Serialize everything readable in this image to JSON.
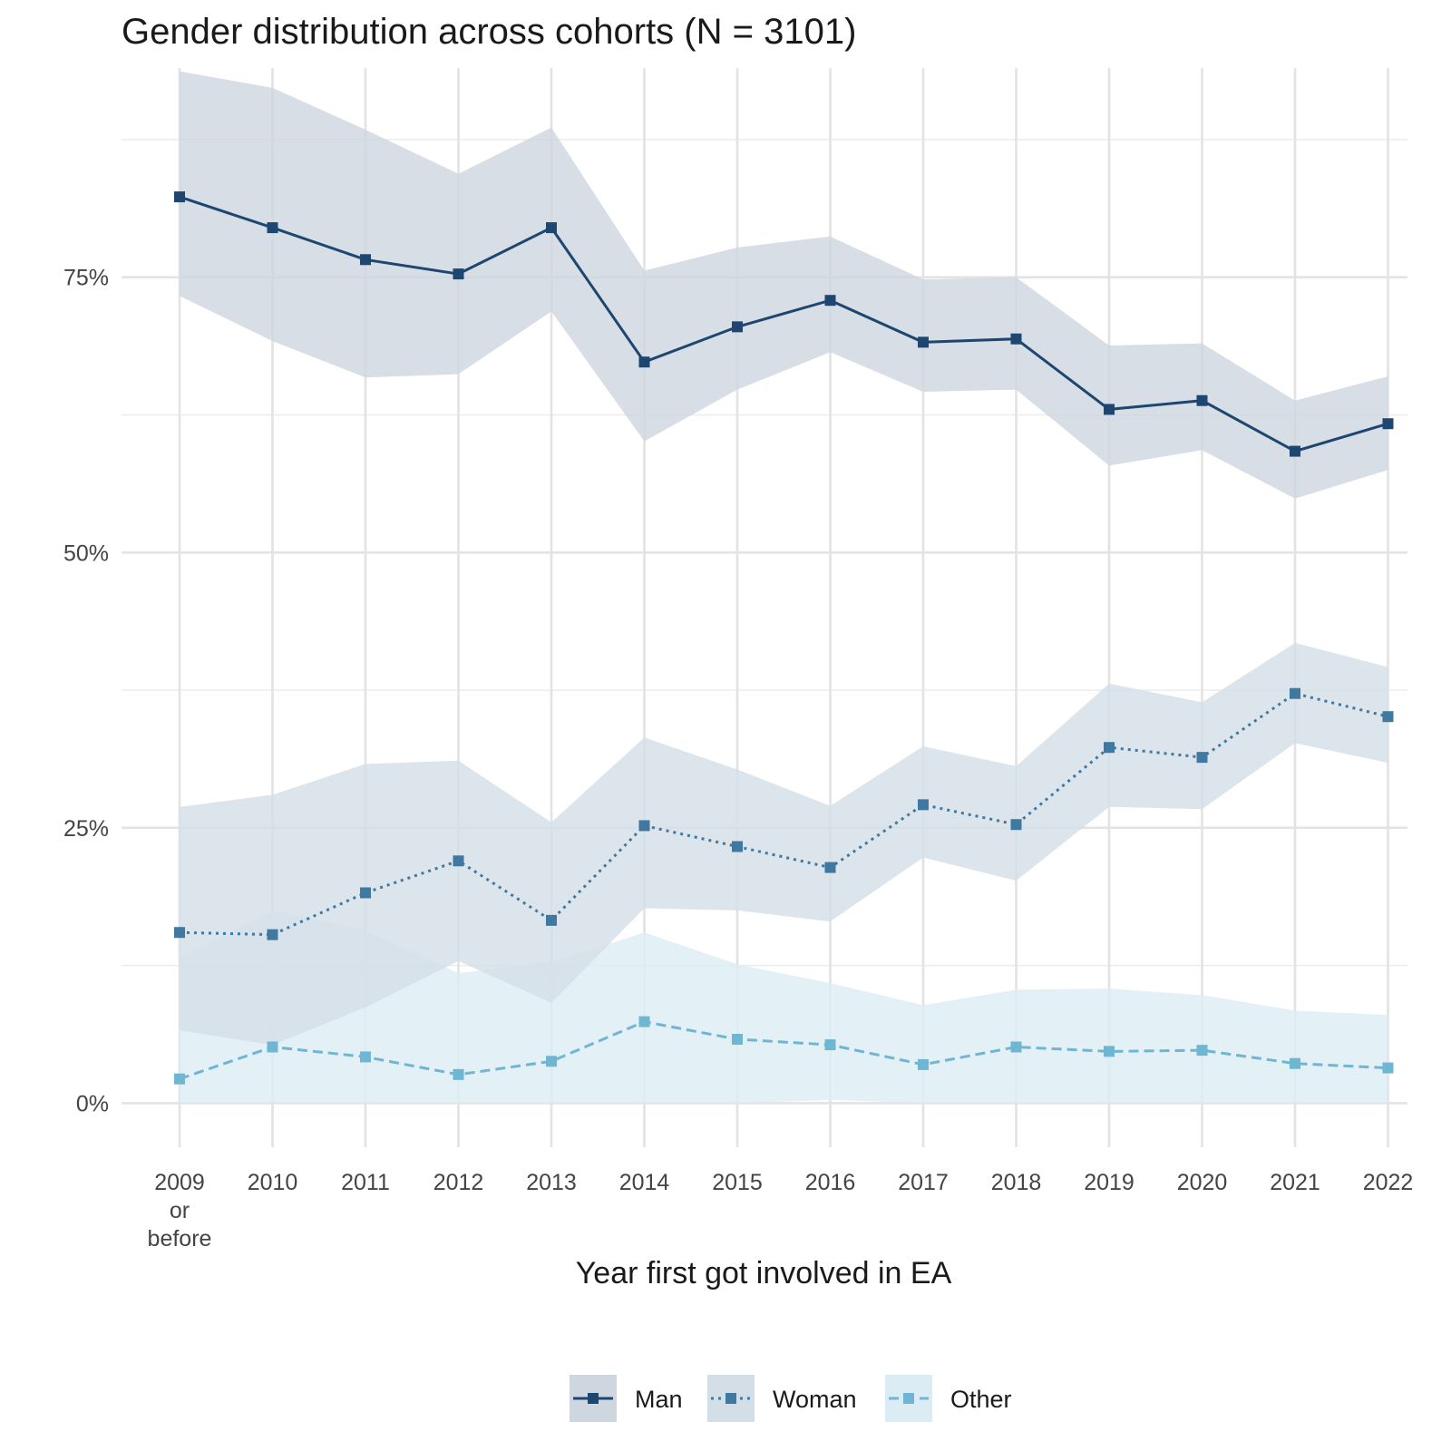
{
  "chart_data": {
    "type": "line",
    "title": "Gender distribution across cohorts (N = 3101)",
    "xlabel": "Year first got involved in EA",
    "ylabel": "",
    "categories": [
      [
        "2009",
        "or",
        "before"
      ],
      [
        "2010"
      ],
      [
        "2011"
      ],
      [
        "2012"
      ],
      [
        "2013"
      ],
      [
        "2014"
      ],
      [
        "2015"
      ],
      [
        "2016"
      ],
      [
        "2017"
      ],
      [
        "2018"
      ],
      [
        "2019"
      ],
      [
        "2020"
      ],
      [
        "2021"
      ],
      [
        "2022"
      ]
    ],
    "ylim": [
      -0.04,
      0.94
    ],
    "y_ticks": [
      0,
      0.25,
      0.5,
      0.75
    ],
    "y_tick_labels": [
      "0%",
      "25%",
      "50%",
      "75%"
    ],
    "y_minor_ticks": [
      0.125,
      0.375,
      0.625,
      0.875
    ],
    "grid": true,
    "legend_position": "bottom",
    "series": [
      {
        "name": "Man",
        "color": "#1d4770",
        "fill": "#ced6df",
        "dash": "solid",
        "values": [
          0.823,
          0.795,
          0.766,
          0.753,
          0.795,
          0.673,
          0.705,
          0.729,
          0.691,
          0.694,
          0.63,
          0.638,
          0.592,
          0.617
        ],
        "lower": [
          0.733,
          0.692,
          0.659,
          0.662,
          0.719,
          0.601,
          0.648,
          0.682,
          0.646,
          0.648,
          0.579,
          0.593,
          0.549,
          0.575
        ],
        "upper": [
          0.937,
          0.922,
          0.884,
          0.844,
          0.886,
          0.756,
          0.777,
          0.787,
          0.748,
          0.75,
          0.688,
          0.69,
          0.638,
          0.66
        ]
      },
      {
        "name": "Woman",
        "color": "#3f78a0",
        "fill": "#d3dee7",
        "dash": "dotted",
        "values": [
          0.155,
          0.153,
          0.191,
          0.22,
          0.166,
          0.252,
          0.233,
          0.214,
          0.271,
          0.253,
          0.323,
          0.314,
          0.372,
          0.351
        ],
        "lower": [
          0.066,
          0.053,
          0.087,
          0.129,
          0.091,
          0.177,
          0.175,
          0.165,
          0.223,
          0.202,
          0.269,
          0.267,
          0.327,
          0.309
        ],
        "upper": [
          0.269,
          0.28,
          0.308,
          0.311,
          0.255,
          0.332,
          0.303,
          0.27,
          0.324,
          0.306,
          0.381,
          0.364,
          0.418,
          0.396
        ]
      },
      {
        "name": "Other",
        "color": "#6fb6d2",
        "fill": "#dcecf4",
        "dash": "dashed",
        "values": [
          0.022,
          0.051,
          0.042,
          0.026,
          0.038,
          0.074,
          0.058,
          0.053,
          0.035,
          0.051,
          0.047,
          0.048,
          0.036,
          0.032
        ],
        "lower": [
          0.0,
          0.0,
          0.0,
          0.0,
          0.0,
          0.0,
          0.0,
          0.003,
          0.0,
          0.0,
          0.0,
          0.0,
          0.0,
          0.0
        ],
        "upper": [
          0.132,
          0.175,
          0.157,
          0.118,
          0.128,
          0.155,
          0.126,
          0.109,
          0.089,
          0.103,
          0.104,
          0.098,
          0.084,
          0.08
        ]
      }
    ]
  }
}
